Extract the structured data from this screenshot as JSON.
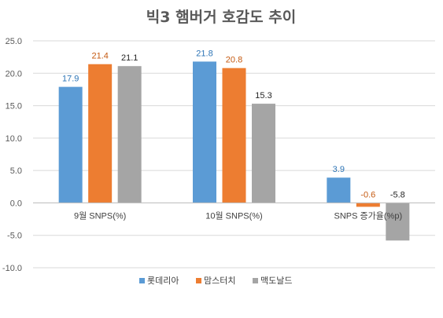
{
  "chart_data": {
    "type": "bar",
    "title": "빅3 햄버거 호감도 추이",
    "xlabel": "",
    "ylabel": "",
    "categories": [
      "9월 SNPS(%)",
      "10월 SNPS(%)",
      "SNPS 증가율(%p)"
    ],
    "series": [
      {
        "name": "롯데리아",
        "values": [
          17.9,
          21.8,
          3.9
        ],
        "color": "#5B9BD5",
        "label_color": "#2E75B6"
      },
      {
        "name": "맘스터치",
        "values": [
          21.4,
          20.8,
          -0.6
        ],
        "color": "#ED7D31",
        "label_color": "#C55A11"
      },
      {
        "name": "맥도날드",
        "values": [
          21.1,
          15.3,
          -5.8
        ],
        "color": "#A5A5A5",
        "label_color": "#262626"
      }
    ],
    "data_labels": [
      [
        "17.9",
        "21.8",
        "3.9"
      ],
      [
        "21.4",
        "20.8",
        "-0.6"
      ],
      [
        "21.1",
        "15.3",
        "-5.8"
      ]
    ],
    "yticks": [
      25.0,
      20.0,
      15.0,
      10.0,
      5.0,
      0.0,
      -5.0,
      -10.0
    ],
    "ytick_labels": [
      "25.0",
      "20.0",
      "15.0",
      "10.0",
      "5.0",
      "0.0",
      "-5.0",
      "-10.0"
    ],
    "ylim": [
      -10,
      25
    ],
    "grid": true,
    "legend_position": "bottom"
  }
}
